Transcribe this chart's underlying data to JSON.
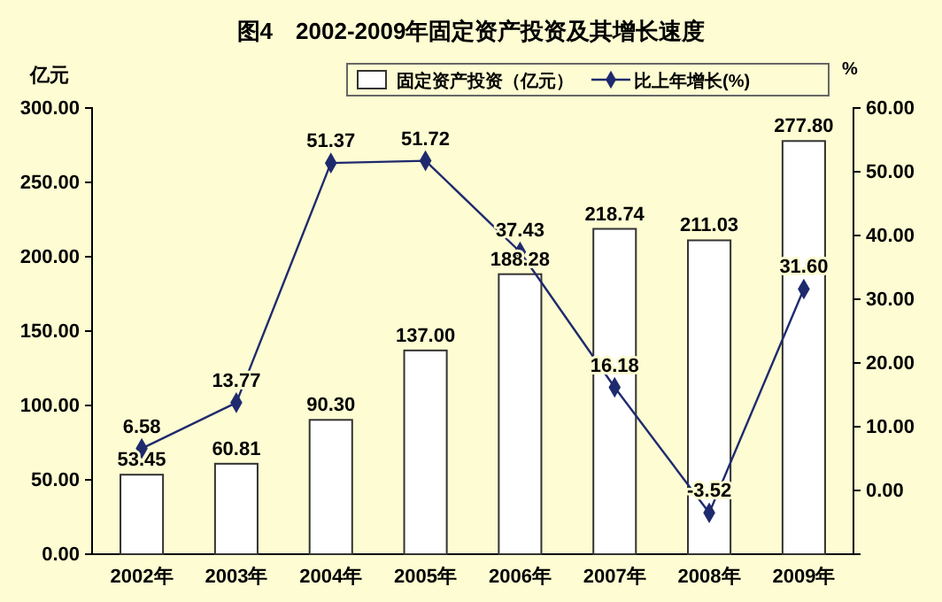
{
  "chart_data": {
    "type": "bar",
    "title": "图4　2002-2009年固定资产投资及其增长速度",
    "ylabel": "亿元",
    "y2label": "%",
    "categories": [
      "2002年",
      "2003年",
      "2004年",
      "2005年",
      "2006年",
      "2007年",
      "2008年",
      "2009年"
    ],
    "series": [
      {
        "name": "固定资产投资（亿元）",
        "color": "#ffffff",
        "values": [
          53.45,
          60.81,
          90.3,
          137,
          188.28,
          218.74,
          211.03,
          277.8
        ],
        "value_labels": [
          "53.45",
          "60.81",
          "90.30",
          "137.00",
          "188.28",
          "218.74",
          "211.03",
          "277.80"
        ]
      },
      {
        "name": "比上年增长(%)",
        "type": "line",
        "axis": "y2",
        "color": "#1f2a6e",
        "marker": "diamond",
        "values": [
          6.58,
          13.77,
          51.37,
          51.72,
          37.43,
          16.18,
          -3.52,
          31.6
        ],
        "value_labels": [
          "6.58",
          "13.77",
          "51.37",
          "51.72",
          "37.43",
          "16.18",
          "-3.52",
          "31.60"
        ]
      }
    ],
    "ylim": [
      0,
      300
    ],
    "yticks": [
      {
        "value": 0,
        "label": "0.00"
      },
      {
        "value": 50,
        "label": "50.00"
      },
      {
        "value": 100,
        "label": "100.00"
      },
      {
        "value": 150,
        "label": "150.00"
      },
      {
        "value": 200,
        "label": "200.00"
      },
      {
        "value": 250,
        "label": "250.00"
      },
      {
        "value": 300,
        "label": "300.00"
      }
    ],
    "y2lim": [
      -10,
      60
    ],
    "y2ticks": [
      {
        "value": -10,
        "label": null
      },
      {
        "value": 0,
        "label": "0.00"
      },
      {
        "value": 10,
        "label": "10.00"
      },
      {
        "value": 20,
        "label": "20.00"
      },
      {
        "value": 30,
        "label": "30.00"
      },
      {
        "value": 40,
        "label": "40.00"
      },
      {
        "value": 50,
        "label": "50.00"
      },
      {
        "value": 60,
        "label": "60.00"
      }
    ],
    "legend": "top right",
    "grid": false
  }
}
